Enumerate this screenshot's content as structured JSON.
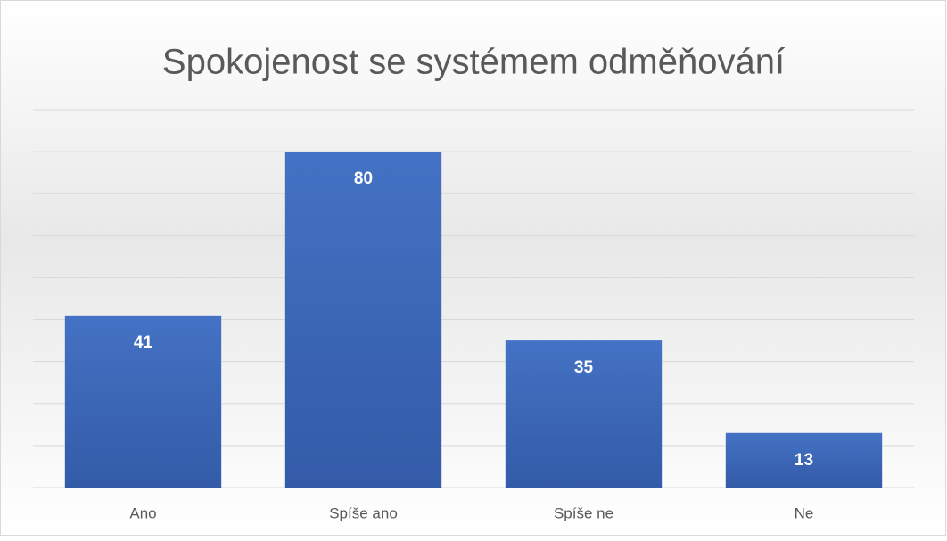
{
  "chart_data": {
    "type": "bar",
    "title": "Spokojenost se systémem odměňování",
    "categories": [
      "Ano",
      "Spíše ano",
      "Spíše ne",
      "Ne"
    ],
    "values": [
      41,
      80,
      35,
      13
    ],
    "color": "#4472c4",
    "ylim": [
      0,
      90
    ],
    "yticks": [
      0,
      10,
      20,
      30,
      40,
      50,
      60,
      70,
      80,
      90
    ],
    "grid": true
  }
}
